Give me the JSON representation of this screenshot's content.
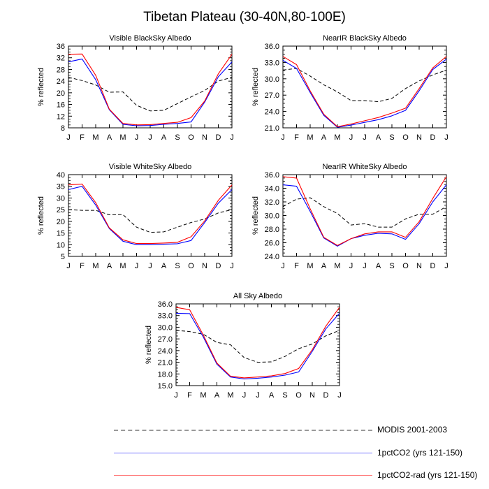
{
  "title": "Tibetan Plateau (30-40N,80-100E)",
  "colors": {
    "modis": "#000000",
    "co2": "#0000ff",
    "co2rad": "#ff0000",
    "legend_modis": "#999999",
    "legend_co2": "#7777ff",
    "legend_co2rad": "#ff7777"
  },
  "legend": [
    {
      "label": "MODIS 2001-2003",
      "style": "dashed",
      "color_key": "legend_modis"
    },
    {
      "label": "1pctCO2 (yrs 121-150)",
      "style": "solid",
      "color_key": "legend_co2"
    },
    {
      "label": "1pctCO2-rad (yrs 121-150)",
      "style": "solid",
      "color_key": "legend_co2rad"
    }
  ],
  "chart_data": [
    {
      "type": "line",
      "title": "Visible BlackSky Albedo",
      "ylabel": "% reflected",
      "categories": [
        "J",
        "F",
        "M",
        "A",
        "M",
        "J",
        "J",
        "A",
        "S",
        "O",
        "N",
        "D",
        "J"
      ],
      "ylim": [
        8,
        36
      ],
      "yticks": [
        8,
        12,
        16,
        20,
        24,
        28,
        32,
        36
      ],
      "ytick_labels": [
        "8",
        "12",
        "16",
        "20",
        "24",
        "28",
        "32",
        "36"
      ],
      "series": [
        {
          "name": "MODIS 2001-2003",
          "style": "dashed",
          "color_key": "modis",
          "values": [
            25.3,
            24.2,
            22.7,
            20.2,
            20.3,
            15.7,
            13.8,
            14.0,
            16.3,
            18.6,
            20.8,
            24.0,
            25.3
          ]
        },
        {
          "name": "1pctCO2 (yrs 121-150)",
          "style": "solid",
          "color_key": "co2",
          "values": [
            30.6,
            31.6,
            24.5,
            14.2,
            9.2,
            8.7,
            8.8,
            9.2,
            9.5,
            10.0,
            16.8,
            25.5,
            30.6
          ]
        },
        {
          "name": "1pctCO2-rad (yrs 121-150)",
          "style": "solid",
          "color_key": "co2rad",
          "values": [
            33.2,
            33.3,
            26.0,
            14.4,
            9.5,
            9.0,
            9.1,
            9.5,
            9.9,
            11.5,
            17.2,
            26.5,
            33.2
          ]
        }
      ]
    },
    {
      "type": "line",
      "title": "NearIR BlackSky Albedo",
      "ylabel": "% reflected",
      "categories": [
        "J",
        "F",
        "M",
        "A",
        "M",
        "J",
        "J",
        "A",
        "S",
        "O",
        "N",
        "D",
        "J"
      ],
      "ylim": [
        21,
        36
      ],
      "yticks": [
        21,
        24,
        27,
        30,
        33,
        36
      ],
      "ytick_labels": [
        "21.0",
        "24.0",
        "27.0",
        "30.0",
        "33.0",
        "36.0"
      ],
      "series": [
        {
          "name": "MODIS 2001-2003",
          "style": "dashed",
          "color_key": "modis",
          "values": [
            31.6,
            31.9,
            30.5,
            28.9,
            27.6,
            26.0,
            26.0,
            25.8,
            26.4,
            28.2,
            29.6,
            30.7,
            31.6
          ]
        },
        {
          "name": "1pctCO2 (yrs 121-150)",
          "style": "solid",
          "color_key": "co2",
          "values": [
            33.4,
            31.9,
            27.5,
            23.3,
            21.1,
            21.5,
            22.0,
            22.5,
            23.2,
            24.2,
            27.8,
            31.7,
            33.6
          ]
        },
        {
          "name": "1pctCO2-rad (yrs 121-150)",
          "style": "solid",
          "color_key": "co2rad",
          "values": [
            34.1,
            32.6,
            27.8,
            23.5,
            21.2,
            21.7,
            22.3,
            22.9,
            23.7,
            24.6,
            28.2,
            32.0,
            34.1
          ]
        }
      ]
    },
    {
      "type": "line",
      "title": "Visible WhiteSky Albedo",
      "ylabel": "% reflected",
      "categories": [
        "J",
        "F",
        "M",
        "A",
        "M",
        "J",
        "J",
        "A",
        "S",
        "O",
        "N",
        "D",
        "J"
      ],
      "ylim": [
        5,
        40
      ],
      "yticks": [
        5,
        10,
        15,
        20,
        25,
        30,
        35,
        40
      ],
      "ytick_labels": [
        "5",
        "10",
        "15",
        "20",
        "25",
        "30",
        "35",
        "40"
      ],
      "series": [
        {
          "name": "MODIS 2001-2003",
          "style": "dashed",
          "color_key": "modis",
          "values": [
            25.0,
            24.7,
            24.7,
            22.8,
            22.9,
            17.5,
            15.3,
            15.5,
            17.5,
            19.5,
            21.0,
            23.6,
            25.0
          ]
        },
        {
          "name": "1pctCO2 (yrs 121-150)",
          "style": "solid",
          "color_key": "co2",
          "values": [
            33.6,
            35.0,
            27.0,
            16.9,
            11.5,
            10.0,
            10.0,
            10.2,
            10.4,
            11.8,
            19.5,
            27.8,
            33.6
          ]
        },
        {
          "name": "1pctCO2-rad (yrs 121-150)",
          "style": "solid",
          "color_key": "co2rad",
          "values": [
            35.6,
            36.0,
            28.0,
            17.2,
            12.1,
            10.5,
            10.5,
            10.7,
            11.0,
            13.4,
            20.2,
            29.0,
            35.6
          ]
        }
      ]
    },
    {
      "type": "line",
      "title": "NearIR WhiteSky Albedo",
      "ylabel": "% reflected",
      "categories": [
        "J",
        "F",
        "M",
        "A",
        "M",
        "J",
        "J",
        "A",
        "S",
        "O",
        "N",
        "D",
        "J"
      ],
      "ylim": [
        24,
        36
      ],
      "yticks": [
        24,
        26,
        28,
        30,
        32,
        34,
        36
      ],
      "ytick_labels": [
        "24.0",
        "26.0",
        "28.0",
        "30.0",
        "32.0",
        "34.0",
        "36.0"
      ],
      "series": [
        {
          "name": "MODIS 2001-2003",
          "style": "dashed",
          "color_key": "modis",
          "values": [
            31.3,
            32.4,
            32.6,
            31.3,
            30.3,
            28.6,
            28.8,
            28.3,
            28.3,
            29.5,
            30.2,
            30.2,
            31.3
          ]
        },
        {
          "name": "1pctCO2 (yrs 121-150)",
          "style": "solid",
          "color_key": "co2",
          "values": [
            34.5,
            34.3,
            30.6,
            26.7,
            25.5,
            26.6,
            27.1,
            27.4,
            27.3,
            26.5,
            28.8,
            32.0,
            34.5
          ]
        },
        {
          "name": "1pctCO2-rad (yrs 121-150)",
          "style": "solid",
          "color_key": "co2rad",
          "values": [
            35.7,
            35.5,
            31.0,
            26.8,
            25.6,
            26.6,
            27.3,
            27.6,
            27.6,
            26.8,
            29.1,
            32.5,
            35.7
          ]
        }
      ]
    },
    {
      "type": "line",
      "title": "All Sky Albedo",
      "ylabel": "% reflected",
      "categories": [
        "J",
        "F",
        "M",
        "A",
        "M",
        "J",
        "J",
        "A",
        "S",
        "O",
        "N",
        "D",
        "J"
      ],
      "ylim": [
        15,
        36
      ],
      "yticks": [
        15,
        18,
        21,
        24,
        27,
        30,
        33,
        36
      ],
      "ytick_labels": [
        "15.0",
        "18.0",
        "21.0",
        "24.0",
        "27.0",
        "30.0",
        "33.0",
        "36.0"
      ],
      "series": [
        {
          "name": "MODIS 2001-2003",
          "style": "dashed",
          "color_key": "modis",
          "values": [
            29.2,
            28.9,
            28.2,
            26.1,
            25.5,
            22.2,
            21.0,
            21.1,
            22.5,
            24.5,
            25.7,
            27.8,
            29.2
          ]
        },
        {
          "name": "1pctCO2 (yrs 121-150)",
          "style": "solid",
          "color_key": "co2",
          "values": [
            33.6,
            33.5,
            27.5,
            20.5,
            17.2,
            16.7,
            16.9,
            17.2,
            17.7,
            18.5,
            23.8,
            29.6,
            33.6
          ]
        },
        {
          "name": "1pctCO2-rad (yrs 121-150)",
          "style": "solid",
          "color_key": "co2rad",
          "values": [
            35.1,
            34.5,
            28.0,
            20.8,
            17.4,
            17.0,
            17.2,
            17.5,
            18.1,
            19.4,
            24.2,
            30.3,
            35.1
          ]
        }
      ]
    }
  ]
}
